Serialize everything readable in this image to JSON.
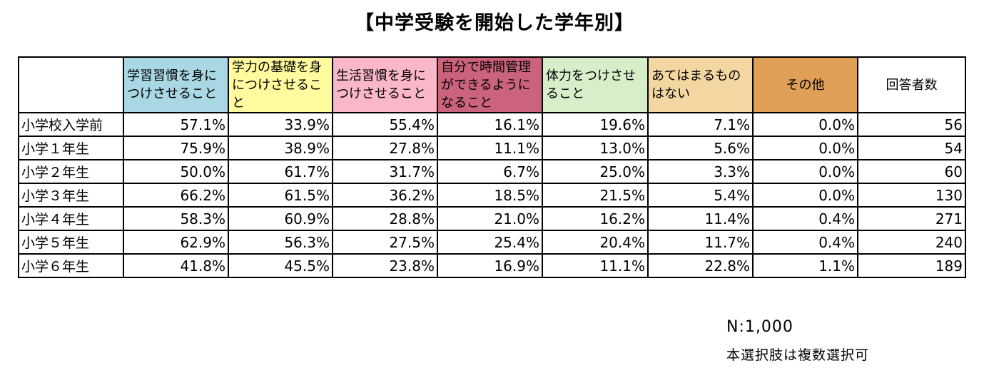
{
  "chart_data": {
    "type": "table",
    "title": "【中学受験を開始した学年別】",
    "columns": [
      {
        "label": "学習習慣を身につけさせること",
        "color": "#A9D7E4"
      },
      {
        "label": "学力の基礎を身につけさせること",
        "color": "#FFFB9E"
      },
      {
        "label": "生活習慣を身につけさせること",
        "color": "#FAB7CA"
      },
      {
        "label": "自分で時間管理ができるようになること",
        "color": "#CC637D"
      },
      {
        "label": "体力をつけさせること",
        "color": "#D6EECA"
      },
      {
        "label": "あてはまるものはない",
        "color": "#F4D6A2"
      },
      {
        "label": "その他",
        "color": "#DF9F56"
      },
      {
        "label": "回答者数",
        "color": "#FFFFFF"
      }
    ],
    "rows": [
      {
        "label": "小学校入学前",
        "values": [
          "57.1%",
          "33.9%",
          "55.4%",
          "16.1%",
          "19.6%",
          "7.1%",
          "0.0%",
          "56"
        ]
      },
      {
        "label": "小学１年生",
        "values": [
          "75.9%",
          "38.9%",
          "27.8%",
          "11.1%",
          "13.0%",
          "5.6%",
          "0.0%",
          "54"
        ]
      },
      {
        "label": "小学２年生",
        "values": [
          "50.0%",
          "61.7%",
          "31.7%",
          "6.7%",
          "25.0%",
          "3.3%",
          "0.0%",
          "60"
        ]
      },
      {
        "label": "小学３年生",
        "values": [
          "66.2%",
          "61.5%",
          "36.2%",
          "18.5%",
          "21.5%",
          "5.4%",
          "0.0%",
          "130"
        ]
      },
      {
        "label": "小学４年生",
        "values": [
          "58.3%",
          "60.9%",
          "28.8%",
          "21.0%",
          "16.2%",
          "11.4%",
          "0.4%",
          "271"
        ]
      },
      {
        "label": "小学５年生",
        "values": [
          "62.9%",
          "56.3%",
          "27.5%",
          "25.4%",
          "20.4%",
          "11.7%",
          "0.4%",
          "240"
        ]
      },
      {
        "label": "小学６年生",
        "values": [
          "41.8%",
          "45.5%",
          "23.8%",
          "16.9%",
          "11.1%",
          "22.8%",
          "1.1%",
          "189"
        ]
      }
    ]
  },
  "notes": {
    "n": "N:1,000",
    "multiple": "本選択肢は複数選択可"
  }
}
